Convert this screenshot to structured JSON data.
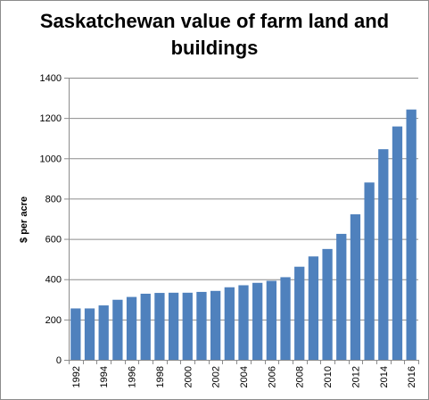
{
  "chart_data": {
    "type": "bar",
    "title_lines": [
      "Saskatchewan value of farm land and",
      "buildings"
    ],
    "xlabel": "",
    "ylabel": "$ per acre",
    "ylim": [
      0,
      1400
    ],
    "yticks": [
      0,
      200,
      400,
      600,
      800,
      1000,
      1200,
      1400
    ],
    "grid": true,
    "legend": "none",
    "bar_color": "#4f81bd",
    "categories": [
      "1992",
      "1993",
      "1994",
      "1995",
      "1996",
      "1997",
      "1998",
      "1999",
      "2000",
      "2001",
      "2002",
      "2003",
      "2004",
      "2005",
      "2006",
      "2007",
      "2008",
      "2009",
      "2010",
      "2011",
      "2012",
      "2013",
      "2014",
      "2015",
      "2016"
    ],
    "x_tick_labels": [
      "1992",
      "",
      "1994",
      "",
      "1996",
      "",
      "1998",
      "",
      "2000",
      "",
      "2002",
      "",
      "2004",
      "",
      "2006",
      "",
      "2008",
      "",
      "2010",
      "",
      "2012",
      "",
      "2014",
      "",
      "2016"
    ],
    "values": [
      255,
      255,
      270,
      298,
      312,
      328,
      332,
      333,
      333,
      337,
      342,
      360,
      370,
      382,
      392,
      410,
      462,
      513,
      550,
      625,
      722,
      880,
      1045,
      1158,
      1242
    ]
  }
}
